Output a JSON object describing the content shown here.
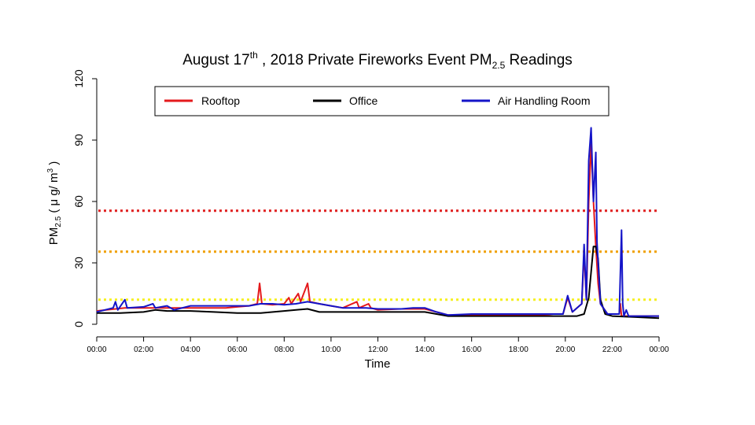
{
  "chart_data": {
    "type": "line",
    "title": {
      "main": "August 17",
      "sup": "th",
      "middle": " , 2018 Private Fireworks Event PM",
      "sub": "2.5",
      "end": " Readings"
    },
    "xlabel": "Time",
    "ylabel": {
      "main": "PM",
      "sub": "2.5",
      "unit_open": " ( μ g/ m",
      "unit_sup": "3",
      "unit_close": " )"
    },
    "x_unit": "hours",
    "xlim": [
      0,
      24
    ],
    "ylim": [
      0,
      120
    ],
    "x_ticks": [
      0,
      2,
      4,
      6,
      8,
      10,
      12,
      14,
      16,
      18,
      20,
      22,
      24
    ],
    "x_tick_labels": [
      "00:00",
      "02:00",
      "04:00",
      "06:00",
      "08:00",
      "10:00",
      "12:00",
      "14:00",
      "16:00",
      "18:00",
      "20:00",
      "22:00",
      "00:00"
    ],
    "y_ticks": [
      0,
      30,
      60,
      90,
      120
    ],
    "y_tick_labels": [
      "0",
      "30",
      "60",
      "90",
      "120"
    ],
    "grid": false,
    "legend_position": "top",
    "reference_lines": [
      {
        "y": 55.5,
        "color": "#e02020",
        "style": "dotted"
      },
      {
        "y": 35.5,
        "color": "#f0a000",
        "style": "dotted"
      },
      {
        "y": 12.0,
        "color": "#f5f020",
        "style": "dotted"
      }
    ],
    "series": [
      {
        "name": "Rooftop",
        "color": "#e41a1c",
        "points": [
          [
            0,
            6.5
          ],
          [
            0.8,
            7.5
          ],
          [
            1.2,
            8
          ],
          [
            2,
            8
          ],
          [
            3,
            8
          ],
          [
            4,
            8
          ],
          [
            5,
            8
          ],
          [
            5.5,
            8
          ],
          [
            6,
            8.5
          ],
          [
            6.5,
            9
          ],
          [
            6.85,
            10
          ],
          [
            6.95,
            20
          ],
          [
            7.05,
            10
          ],
          [
            7.5,
            9.5
          ],
          [
            8,
            10
          ],
          [
            8.2,
            13
          ],
          [
            8.3,
            10
          ],
          [
            8.6,
            15
          ],
          [
            8.7,
            11
          ],
          [
            9.0,
            20
          ],
          [
            9.1,
            11
          ],
          [
            9.5,
            10
          ],
          [
            10,
            9
          ],
          [
            10.5,
            8
          ],
          [
            11.1,
            11
          ],
          [
            11.2,
            8
          ],
          [
            11.6,
            10
          ],
          [
            11.7,
            8
          ],
          [
            12,
            7
          ],
          [
            13,
            7.5
          ],
          [
            14,
            7.5
          ],
          [
            14.5,
            6
          ],
          [
            15,
            4.5
          ],
          [
            16,
            4.5
          ],
          [
            17,
            4.5
          ],
          [
            18,
            4.5
          ],
          [
            19,
            4.5
          ],
          [
            19.5,
            5
          ],
          [
            19.9,
            5
          ],
          [
            20.1,
            13
          ],
          [
            20.3,
            6
          ],
          [
            20.7,
            10
          ],
          [
            20.8,
            35
          ],
          [
            20.9,
            12
          ],
          [
            21.0,
            60
          ],
          [
            21.1,
            88
          ],
          [
            21.2,
            60
          ],
          [
            21.3,
            38
          ],
          [
            21.4,
            20
          ],
          [
            21.5,
            10
          ],
          [
            21.8,
            5
          ],
          [
            22.3,
            5
          ],
          [
            22.35,
            10
          ],
          [
            22.4,
            4
          ],
          [
            23,
            4
          ],
          [
            24,
            4
          ]
        ]
      },
      {
        "name": "Office",
        "color": "#000000",
        "points": [
          [
            0,
            5.5
          ],
          [
            1,
            5.5
          ],
          [
            2,
            6
          ],
          [
            2.5,
            7
          ],
          [
            3,
            6.5
          ],
          [
            4,
            6.5
          ],
          [
            5,
            6
          ],
          [
            6,
            5.5
          ],
          [
            7,
            5.5
          ],
          [
            8,
            6.5
          ],
          [
            9,
            7.5
          ],
          [
            9.5,
            6
          ],
          [
            10,
            6
          ],
          [
            11,
            6
          ],
          [
            12,
            6
          ],
          [
            13,
            6
          ],
          [
            14,
            6
          ],
          [
            14.5,
            5
          ],
          [
            15,
            4
          ],
          [
            16,
            4
          ],
          [
            17,
            4
          ],
          [
            18,
            4
          ],
          [
            19,
            4
          ],
          [
            19.5,
            4
          ],
          [
            20,
            4
          ],
          [
            20.5,
            4
          ],
          [
            20.8,
            5
          ],
          [
            21.0,
            13
          ],
          [
            21.2,
            38
          ],
          [
            21.3,
            38
          ],
          [
            21.4,
            32
          ],
          [
            21.5,
            12
          ],
          [
            21.7,
            5
          ],
          [
            22,
            4
          ],
          [
            23,
            3.5
          ],
          [
            24,
            3
          ]
        ]
      },
      {
        "name": "Air Handling Room",
        "color": "#1414c8",
        "points": [
          [
            0,
            6
          ],
          [
            0.7,
            8
          ],
          [
            0.8,
            11
          ],
          [
            0.9,
            7
          ],
          [
            1.2,
            12
          ],
          [
            1.3,
            8
          ],
          [
            2,
            8.5
          ],
          [
            2.4,
            10
          ],
          [
            2.5,
            8
          ],
          [
            3,
            9
          ],
          [
            3.3,
            7
          ],
          [
            4,
            9
          ],
          [
            5,
            9
          ],
          [
            6,
            9
          ],
          [
            6.5,
            9
          ],
          [
            7,
            10
          ],
          [
            7.5,
            10
          ],
          [
            8,
            9.5
          ],
          [
            8.5,
            10
          ],
          [
            9,
            11
          ],
          [
            9.5,
            10
          ],
          [
            10,
            9
          ],
          [
            10.5,
            8
          ],
          [
            11,
            8
          ],
          [
            11.5,
            8
          ],
          [
            12,
            7.5
          ],
          [
            13,
            7.5
          ],
          [
            13.5,
            8
          ],
          [
            14,
            8
          ],
          [
            14.5,
            6
          ],
          [
            15,
            4.5
          ],
          [
            16,
            5
          ],
          [
            17,
            5
          ],
          [
            18,
            5
          ],
          [
            19,
            5
          ],
          [
            19.5,
            5
          ],
          [
            19.9,
            5
          ],
          [
            20.1,
            14
          ],
          [
            20.3,
            6
          ],
          [
            20.7,
            10
          ],
          [
            20.8,
            39
          ],
          [
            20.9,
            12
          ],
          [
            21.0,
            80
          ],
          [
            21.1,
            96
          ],
          [
            21.2,
            60
          ],
          [
            21.3,
            84
          ],
          [
            21.35,
            40
          ],
          [
            21.5,
            10
          ],
          [
            21.8,
            5
          ],
          [
            22.3,
            5
          ],
          [
            22.4,
            46
          ],
          [
            22.45,
            10
          ],
          [
            22.5,
            4
          ],
          [
            22.6,
            7
          ],
          [
            22.7,
            4
          ],
          [
            23,
            4
          ],
          [
            23.5,
            4
          ],
          [
            24,
            4
          ]
        ]
      }
    ]
  }
}
